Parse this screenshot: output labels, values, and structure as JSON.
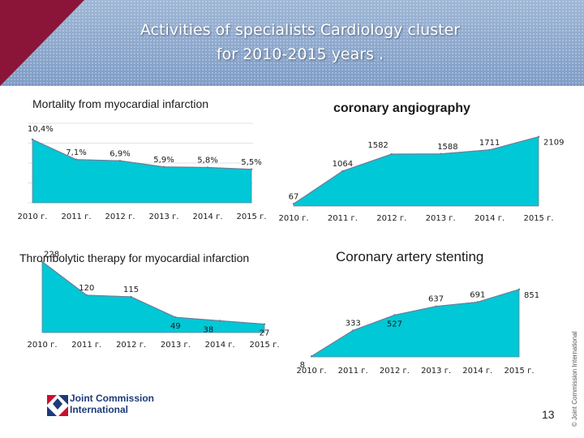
{
  "header": {
    "title_line1": "Activities of specialists Cardiology cluster",
    "title_line2": "for 2010-2015 years ."
  },
  "side_note": "© Joint Commission International",
  "logo": {
    "line1": "Joint Commission",
    "line2": "International"
  },
  "page_number": "13",
  "colors": {
    "fill": "#00c8d6",
    "stroke": "#6b7f97",
    "header_bg": "#8fa9cf",
    "accent": "#8a1538",
    "label": "#1a1a1a"
  },
  "chart_data": [
    {
      "type": "area",
      "title": "Mortality from myocardial infarction",
      "categories": [
        "2010 г.",
        "2011 г.",
        "2012 г.",
        "2013 г.",
        "2014 г.",
        "2015 г."
      ],
      "values": [
        10.4,
        7.1,
        6.9,
        5.9,
        5.8,
        5.5
      ],
      "data_labels": [
        "10,4%",
        "7,1%",
        "6,9%",
        "5,9%",
        "5,8%",
        "5,5%"
      ],
      "ylim": [
        0,
        12
      ],
      "grid": true
    },
    {
      "type": "area",
      "title": "coronary angiography",
      "categories": [
        "2010 г.",
        "2011 г.",
        "2012 г.",
        "2013 г.",
        "2014 г.",
        "2015 г."
      ],
      "values": [
        67,
        1064,
        1582,
        1588,
        1711,
        2109
      ],
      "data_labels": [
        "67",
        "1064",
        "1582",
        "1588",
        "1711",
        "2109"
      ],
      "ylim": [
        0,
        2200
      ],
      "grid": false
    },
    {
      "type": "area",
      "title": "Thrombolytic therapy for myocardial infarction",
      "categories": [
        "2010 г.",
        "2011 г.",
        "2012 г.",
        "2013 г.",
        "2014 г.",
        "2015 г."
      ],
      "values": [
        228,
        120,
        115,
        49,
        38,
        27
      ],
      "data_labels": [
        "228",
        "120",
        "115",
        "49",
        "38",
        "27"
      ],
      "ylim": [
        0,
        240
      ],
      "grid": false
    },
    {
      "type": "area",
      "title": "Coronary artery stenting",
      "categories": [
        "2010 г.",
        "2011 г.",
        "2012 г.",
        "2013 г.",
        "2014 г.",
        "2015 г."
      ],
      "values": [
        8,
        333,
        527,
        637,
        691,
        851
      ],
      "data_labels": [
        "8",
        "333",
        "527",
        "637",
        "691",
        "851"
      ],
      "ylim": [
        0,
        900
      ],
      "grid": false
    }
  ]
}
